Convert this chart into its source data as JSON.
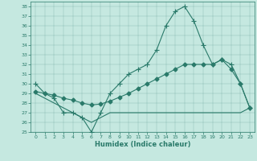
{
  "xlabel": "Humidex (Indice chaleur)",
  "bg_color": "#c5e8e0",
  "line_color": "#2a7a6a",
  "xlim": [
    -0.5,
    23.5
  ],
  "ylim": [
    25,
    38.5
  ],
  "yticks": [
    25,
    26,
    27,
    28,
    29,
    30,
    31,
    32,
    33,
    34,
    35,
    36,
    37,
    38
  ],
  "xticks": [
    0,
    1,
    2,
    3,
    4,
    5,
    6,
    7,
    8,
    9,
    10,
    11,
    12,
    13,
    14,
    15,
    16,
    17,
    18,
    19,
    20,
    21,
    22,
    23
  ],
  "curve1_x": [
    0,
    1,
    2,
    3,
    4,
    5,
    6,
    7,
    8,
    9,
    10,
    11,
    12,
    13,
    14,
    15,
    16,
    17,
    18,
    19,
    20,
    21,
    22,
    23
  ],
  "curve1_y": [
    30,
    29,
    28.5,
    27,
    27,
    26.5,
    25,
    27,
    29,
    30,
    31,
    31.5,
    32,
    33.5,
    36,
    37.5,
    38,
    36.5,
    34,
    32,
    32.5,
    32,
    30,
    27.5
  ],
  "curve2_x": [
    0,
    1,
    2,
    3,
    4,
    5,
    6,
    7,
    8,
    9,
    10,
    11,
    12,
    13,
    14,
    15,
    16,
    17,
    18,
    19,
    20,
    21,
    22,
    23
  ],
  "curve2_y": [
    29.2,
    29,
    28.8,
    28.5,
    28.3,
    28,
    27.8,
    27.9,
    28.2,
    28.6,
    29,
    29.5,
    30,
    30.5,
    31,
    31.5,
    32,
    32,
    32,
    32,
    32.5,
    31.5,
    30,
    27.5
  ],
  "curve3_x": [
    0,
    1,
    2,
    3,
    4,
    5,
    6,
    7,
    8,
    9,
    10,
    11,
    12,
    13,
    14,
    15,
    16,
    17,
    18,
    19,
    20,
    21,
    22,
    23
  ],
  "curve3_y": [
    29,
    28.5,
    28,
    27.5,
    27,
    26.5,
    26,
    26.5,
    27,
    27,
    27,
    27,
    27,
    27,
    27,
    27,
    27,
    27,
    27,
    27,
    27,
    27,
    27,
    27.5
  ]
}
